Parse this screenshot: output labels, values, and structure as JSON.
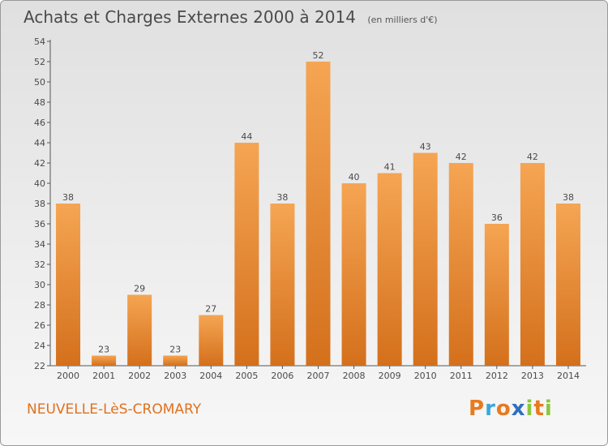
{
  "header": {
    "title": "Achats et Charges Externes 2000 à 2014",
    "unit": "(en milliers d'€)"
  },
  "footer": {
    "town": "NEUVELLE-LèS-CROMARY",
    "logo": "Proxiti"
  },
  "colors": {
    "bar_top": "#f5a553",
    "bar_bottom": "#d4701c",
    "text": "#4a4a4a",
    "town": "#e0711e",
    "logo": [
      "#e87a1f",
      "#3aa7d8",
      "#e87a1f",
      "#2f6fc0",
      "#8cc63f",
      "#e87a1f",
      "#8cc63f"
    ]
  },
  "chart_data": {
    "type": "bar",
    "categories": [
      "2000",
      "2001",
      "2002",
      "2003",
      "2004",
      "2005",
      "2006",
      "2007",
      "2008",
      "2009",
      "2010",
      "2011",
      "2012",
      "2013",
      "2014"
    ],
    "values": [
      38,
      23,
      29,
      23,
      27,
      44,
      38,
      52,
      40,
      41,
      43,
      42,
      36,
      42,
      38
    ],
    "ylim": [
      22,
      54
    ],
    "yticks": [
      22,
      24,
      26,
      28,
      30,
      32,
      34,
      36,
      38,
      40,
      42,
      44,
      46,
      48,
      50,
      52,
      54
    ],
    "grid": false,
    "data_labels": true
  }
}
